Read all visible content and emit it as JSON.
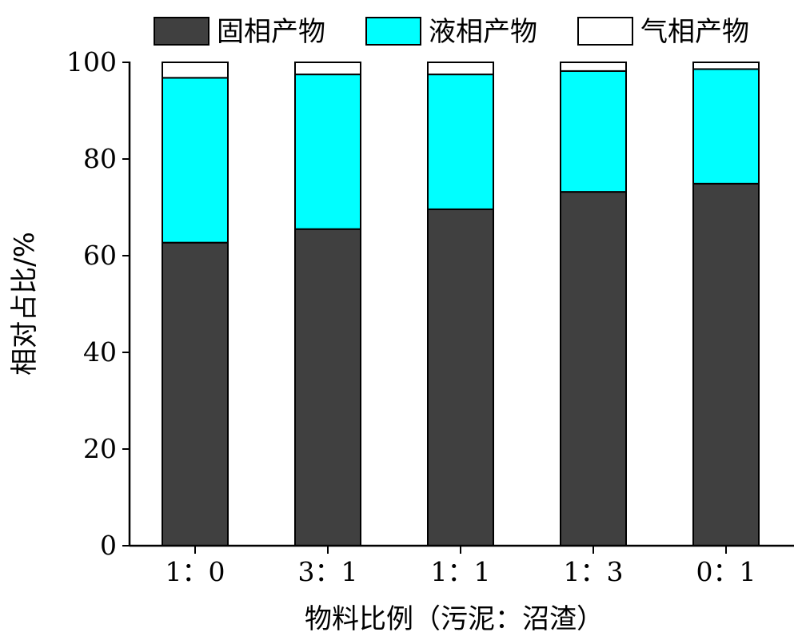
{
  "chart_data": {
    "type": "bar",
    "stacked": true,
    "categories": [
      "1：0",
      "3：1",
      "1：1",
      "1：3",
      "0：1"
    ],
    "series": [
      {
        "name": "固相产物",
        "color": "#404040",
        "values": [
          62.7,
          65.5,
          69.6,
          73.2,
          74.9
        ]
      },
      {
        "name": "液相产物",
        "color": "#00FFFF",
        "values": [
          34.1,
          32.0,
          27.9,
          25.0,
          23.7
        ]
      },
      {
        "name": "气相产物",
        "color": "#FFFFFF",
        "values": [
          3.2,
          2.5,
          2.5,
          1.8,
          1.4
        ]
      }
    ],
    "xlabel": "物料比例（污泥：沼渣）",
    "ylabel": "相对占比/%",
    "ylim": [
      0,
      100
    ],
    "yticks": [
      0,
      20,
      40,
      60,
      80,
      100
    ],
    "grid": false,
    "legend_position": "top"
  }
}
